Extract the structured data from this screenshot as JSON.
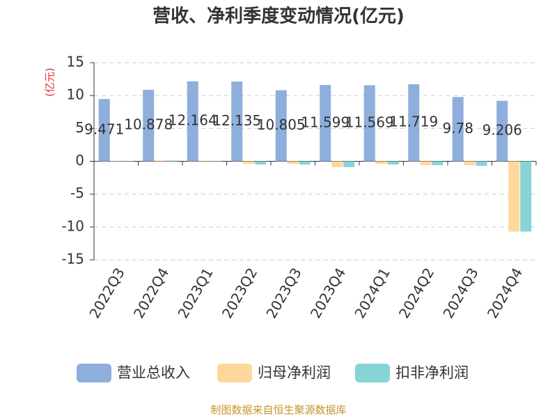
{
  "chart_data": {
    "type": "bar",
    "title": "营收、净利季度变动情况(亿元)",
    "y_label": "(亿元)",
    "categories": [
      "2022Q3",
      "2022Q4",
      "2023Q1",
      "2023Q2",
      "2023Q3",
      "2023Q4",
      "2024Q1",
      "2024Q2",
      "2024Q3",
      "2024Q4"
    ],
    "series": [
      {
        "name": "营业总收入",
        "color": "#8eaedc",
        "values": [
          9.471,
          10.878,
          12.164,
          12.135,
          10.805,
          11.599,
          11.569,
          11.719,
          9.78,
          9.206
        ],
        "labels": true
      },
      {
        "name": "归母净利润",
        "color": "#fdd89a",
        "values": [
          0.05,
          0.1,
          0.05,
          -0.4,
          -0.4,
          -0.9,
          -0.4,
          -0.6,
          -0.6,
          -10.7
        ]
      },
      {
        "name": "扣非净利润",
        "color": "#86d4d6",
        "values": [
          0.05,
          0.1,
          0.05,
          -0.5,
          -0.5,
          -0.9,
          -0.5,
          -0.6,
          -0.7,
          -10.7
        ]
      }
    ],
    "ylim": [
      -15,
      15
    ],
    "yticks": [
      -15,
      -10,
      -5,
      0,
      5,
      10,
      15
    ],
    "grid": true,
    "source": "制图数据来自恒生聚源数据库"
  }
}
